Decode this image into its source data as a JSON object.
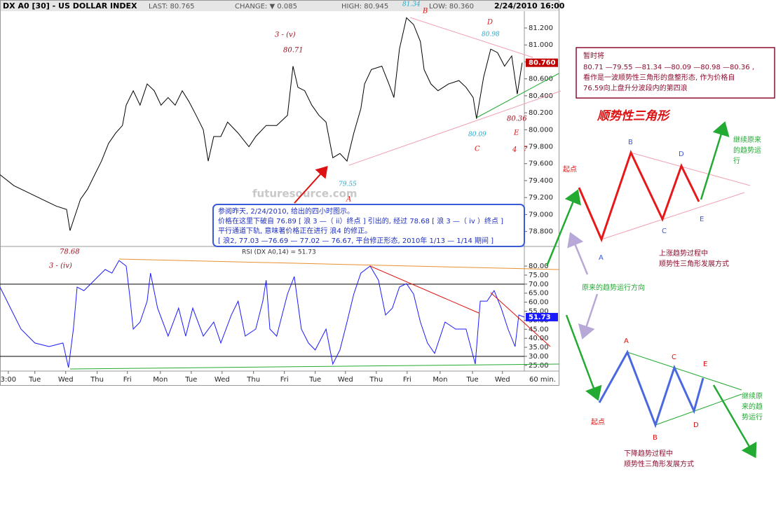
{
  "chart_data": [
    {
      "type": "line",
      "title": "DX A0 [30] - US DOLLAR INDEX",
      "color": "#000000",
      "last_price_label": "80.760",
      "x": [
        -0.27,
        0.18,
        0.64,
        1.09,
        1.55,
        1.89,
        2.0,
        2.11,
        2.34,
        2.57,
        2.8,
        3.02,
        3.25,
        3.48,
        3.7,
        3.82,
        4.05,
        4.27,
        4.5,
        4.73,
        4.95,
        5.18,
        5.41,
        5.64,
        5.86,
        6.09,
        6.32,
        6.48,
        6.66,
        6.89,
        7.11,
        7.45,
        7.8,
        8.02,
        8.36,
        8.7,
        9.05,
        9.23,
        9.39,
        9.61,
        9.84,
        10.07,
        10.3,
        10.52,
        10.75,
        10.98,
        11.2,
        11.43,
        11.55,
        11.77,
        12.11,
        12.34,
        12.5,
        12.68,
        12.91,
        13.14,
        13.36,
        13.48,
        13.7,
        13.93,
        14.27,
        14.61,
        14.84,
        15.07,
        15.18,
        15.41,
        15.64,
        15.86,
        16.09,
        16.32,
        16.5,
        16.66
      ],
      "values": [
        79.47,
        79.34,
        79.26,
        79.18,
        79.1,
        79.06,
        78.81,
        78.93,
        79.18,
        79.3,
        79.47,
        79.63,
        79.84,
        79.96,
        80.05,
        80.29,
        80.46,
        80.29,
        80.54,
        80.46,
        80.29,
        80.38,
        80.29,
        80.46,
        80.33,
        80.17,
        80.0,
        79.63,
        79.92,
        79.92,
        80.09,
        79.96,
        79.8,
        79.92,
        80.05,
        80.05,
        80.17,
        80.75,
        80.5,
        80.46,
        80.29,
        80.17,
        80.09,
        79.67,
        79.72,
        79.63,
        79.96,
        80.25,
        80.54,
        80.71,
        80.75,
        80.54,
        80.38,
        80.95,
        81.32,
        81.24,
        81.04,
        80.71,
        80.54,
        80.46,
        80.54,
        80.58,
        80.5,
        80.38,
        80.13,
        80.62,
        80.95,
        80.91,
        80.75,
        80.87,
        80.42,
        80.79
      ],
      "xlim": [
        -0.27,
        16.73
      ],
      "ylim": [
        78.64,
        81.53
      ],
      "yticks": [
        {
          "value": 78.8,
          "label": "78.800"
        },
        {
          "value": 79.0,
          "label": "79.000"
        },
        {
          "value": 79.2,
          "label": "79.200"
        },
        {
          "value": 79.4,
          "label": "79.400"
        },
        {
          "value": 79.6,
          "label": "79.600"
        },
        {
          "value": 79.8,
          "label": "79.800"
        },
        {
          "value": 80.0,
          "label": "80.000"
        },
        {
          "value": 80.2,
          "label": "80.200"
        },
        {
          "value": 80.4,
          "label": "80.400"
        },
        {
          "value": 80.6,
          "label": "80.600"
        },
        {
          "value": 80.8,
          "label": "80.800"
        },
        {
          "value": 81.0,
          "label": "81.000"
        },
        {
          "value": 81.2,
          "label": "81.200"
        }
      ]
    },
    {
      "type": "line",
      "title": "RSI (DX A0,14) = 51.73",
      "color": "#1a1aff",
      "last_value_label": "51.73",
      "x_unit": "60 min.",
      "x": [
        -0.27,
        0.07,
        0.41,
        0.86,
        1.32,
        1.77,
        1.95,
        2.11,
        2.23,
        2.45,
        2.68,
        2.91,
        3.14,
        3.36,
        3.59,
        3.82,
        3.93,
        4.05,
        4.27,
        4.5,
        4.61,
        4.84,
        5.18,
        5.52,
        5.75,
        5.98,
        6.32,
        6.66,
        6.89,
        7.23,
        7.45,
        7.68,
        8.02,
        8.25,
        8.36,
        8.48,
        8.7,
        9.05,
        9.27,
        9.5,
        9.73,
        9.95,
        10.3,
        10.52,
        10.75,
        10.98,
        11.2,
        11.43,
        11.73,
        12.0,
        12.23,
        12.45,
        12.68,
        12.91,
        13.14,
        13.36,
        13.59,
        13.82,
        14.16,
        14.5,
        14.84,
        15.14,
        15.3,
        15.52,
        15.75,
        15.98,
        16.2,
        16.43,
        16.55,
        16.73
      ],
      "values": [
        68.4,
        56.7,
        45.1,
        37.4,
        35.4,
        37.4,
        23.8,
        45.1,
        68.4,
        66.4,
        70.3,
        74.2,
        78.1,
        76.1,
        83.1,
        80.0,
        64.5,
        45.1,
        49.0,
        60.6,
        76.1,
        56.7,
        41.2,
        56.7,
        41.2,
        56.7,
        41.2,
        49.0,
        37.4,
        52.9,
        60.6,
        41.2,
        45.1,
        60.6,
        72.2,
        45.1,
        41.2,
        64.5,
        74.2,
        45.1,
        37.4,
        33.5,
        45.1,
        25.7,
        33.5,
        49.0,
        64.5,
        76.1,
        80.0,
        72.2,
        52.9,
        56.7,
        68.4,
        70.3,
        64.5,
        49.0,
        37.4,
        31.6,
        49.0,
        45.1,
        45.1,
        25.7,
        60.6,
        60.6,
        66.4,
        56.7,
        45.1,
        35.4,
        52.9,
        51.73
      ],
      "xlim": [
        -0.27,
        16.73
      ],
      "ylim": [
        23,
        87
      ],
      "reference_lines": [
        70,
        30
      ],
      "yticks": [
        {
          "value": 25,
          "label": "25.00"
        },
        {
          "value": 30,
          "label": "30.00"
        },
        {
          "value": 35,
          "label": "35.00"
        },
        {
          "value": 40,
          "label": "40.00"
        },
        {
          "value": 45,
          "label": "45.00"
        },
        {
          "value": 50,
          "label": "50.00"
        },
        {
          "value": 55,
          "label": "55.00"
        },
        {
          "value": 60,
          "label": "60.00"
        },
        {
          "value": 65,
          "label": "65.00"
        },
        {
          "value": 70,
          "label": "70.00"
        },
        {
          "value": 75,
          "label": "75.00"
        },
        {
          "value": 80,
          "label": "80.00"
        }
      ],
      "xticks": [
        {
          "value": 0,
          "label": "3:00"
        },
        {
          "value": 0.86,
          "label": "Tue"
        },
        {
          "value": 1.86,
          "label": "Wed"
        },
        {
          "value": 2.88,
          "label": "Thu"
        },
        {
          "value": 3.86,
          "label": "Fri"
        },
        {
          "value": 4.93,
          "label": "Mon"
        },
        {
          "value": 5.93,
          "label": "Tue"
        },
        {
          "value": 6.93,
          "label": "Wed"
        },
        {
          "value": 7.95,
          "label": "Thu"
        },
        {
          "value": 8.95,
          "label": "Fri"
        },
        {
          "value": 9.95,
          "label": "Tue"
        },
        {
          "value": 10.93,
          "label": "Wed"
        },
        {
          "value": 11.93,
          "label": "Thu"
        },
        {
          "value": 12.93,
          "label": "Fri"
        },
        {
          "value": 14.0,
          "label": "Mon"
        },
        {
          "value": 15.05,
          "label": "Tue"
        },
        {
          "value": 16.02,
          "label": "Wed"
        }
      ]
    }
  ],
  "header": {
    "last": "LAST: 80.765",
    "change": "CHANGE: ▼ 0.085",
    "high": "HIGH: 80.945",
    "low": "LOW: 80.360",
    "datetime": "2/24/2010 16:00"
  },
  "watermark": "futuresource.com",
  "wave_labels": {
    "v3": "3 - (v)",
    "v3_price": "80.71",
    "b": "B",
    "b_price": "81.34",
    "d": "D",
    "d_price": "80.98",
    "e_price": "80.36",
    "e": "E",
    "c_price": "80.09",
    "c": "C",
    "w4": "4",
    "q": "?",
    "a_price": "79.55",
    "a": "A",
    "iv_price": "78.68",
    "iv": "3 - (iv)"
  },
  "note_blue": [
    "参阅昨天, 2/24/2010, 给出的四小时图示。",
    "价格在这里下破自 76.89 [ 浪 3 —（ ii）终点 ] 引出的, 经过 78.68 [ 浪 3 —（ iv ）终点 ]",
    "平行通道下轨, 意味著价格正在进行 浪4 的修正。",
    "[ 浪2, 77.03 —76.69 — 77.02 — 76.67, 平台修正形态, 2010年 1/13 — 1/14 期间 ]"
  ],
  "note_right": [
    "暂时将",
    "80.71 —79.55 —81.34 —80.09 —80.98 —80.36 ,",
    "看作是一波顺势性三角形的盘整形态, 作为价格自",
    "76.59向上盘升分波段内的第四浪"
  ],
  "diagram_title": "顺势性三角形",
  "up_diagram": {
    "start": "起点",
    "a": "A",
    "b": "B",
    "c": "C",
    "d": "D",
    "e": "E",
    "continue": [
      "继续原来",
      "的趋势运",
      "行"
    ],
    "caption": [
      "上涨趋势过程中",
      "顺势性三角形发展方式"
    ]
  },
  "original_trend": "原来的趋势运行方向",
  "down_diagram": {
    "start": "起点",
    "a": "A",
    "b": "B",
    "c": "C",
    "d": "D",
    "e": "E",
    "continue": [
      "继续原",
      "来的趋",
      "势运行"
    ],
    "caption": [
      "下降趋势过程中",
      "顺势性三角形发展方式"
    ]
  }
}
